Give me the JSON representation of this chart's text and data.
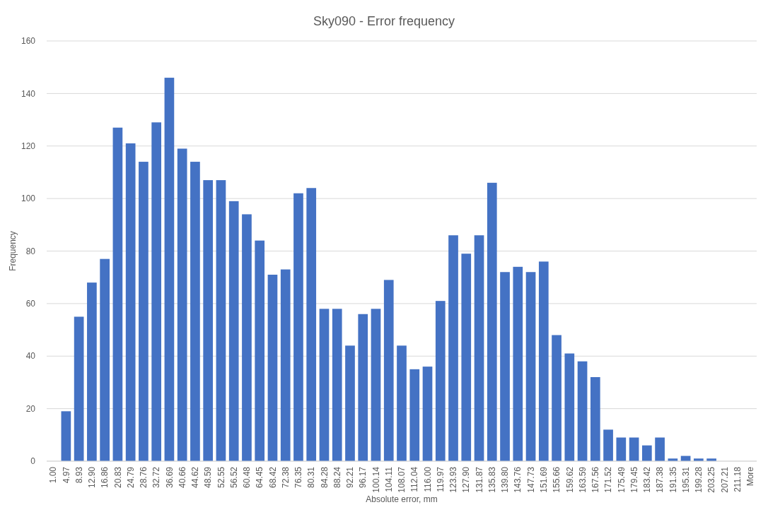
{
  "chart_data": {
    "type": "bar",
    "title": "Sky090 - Error frequency",
    "xlabel": "Absolute error, mm",
    "ylabel": "Frequency",
    "categories": [
      "1.00",
      "4.97",
      "8.93",
      "12.90",
      "16.86",
      "20.83",
      "24.79",
      "28.76",
      "32.72",
      "36.69",
      "40.66",
      "44.62",
      "48.59",
      "52.55",
      "56.52",
      "60.48",
      "64.45",
      "68.42",
      "72.38",
      "76.35",
      "80.31",
      "84.28",
      "88.24",
      "92.21",
      "96.17",
      "100.14",
      "104.11",
      "108.07",
      "112.04",
      "116.00",
      "119.97",
      "123.93",
      "127.90",
      "131.87",
      "135.83",
      "139.80",
      "143.76",
      "147.73",
      "151.69",
      "155.66",
      "159.62",
      "163.59",
      "167.56",
      "171.52",
      "175.49",
      "179.45",
      "183.42",
      "187.38",
      "191.35",
      "195.31",
      "199.28",
      "203.25",
      "207.21",
      "211.18",
      "More"
    ],
    "values": [
      0,
      19,
      55,
      68,
      77,
      127,
      121,
      114,
      129,
      146,
      119,
      114,
      107,
      107,
      99,
      94,
      84,
      71,
      73,
      102,
      104,
      58,
      58,
      44,
      56,
      58,
      69,
      44,
      35,
      36,
      61,
      86,
      79,
      86,
      106,
      72,
      74,
      72,
      76,
      48,
      41,
      38,
      32,
      12,
      9,
      9,
      6,
      9,
      1,
      2,
      1,
      1,
      0,
      0,
      0
    ],
    "color": "#4472c4",
    "ylim": [
      0,
      160
    ],
    "yticks": [
      0,
      20,
      40,
      60,
      80,
      100,
      120,
      140,
      160
    ],
    "grid": "y"
  }
}
